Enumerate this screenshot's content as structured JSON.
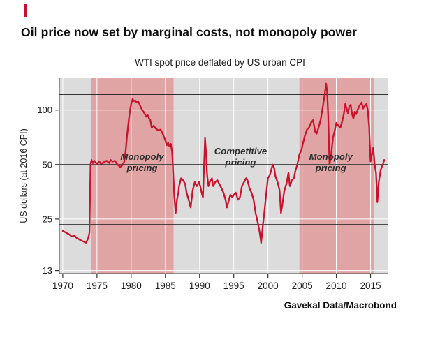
{
  "brand": {
    "color": "#c8102e"
  },
  "header": {
    "title": "Oil price now set by marginal costs, not monopoly power",
    "subtitle": "WTI spot price deflated by US urban CPI"
  },
  "footer": {
    "source": "Gavekal Data/Macrobond"
  },
  "chart_data": {
    "type": "line",
    "title": "Oil price now set by marginal costs, not monopoly power",
    "subtitle": "WTI spot price deflated by US urban CPI",
    "xlabel": "",
    "ylabel": "US dollars (at 2016 CPI)",
    "y_scale": "log",
    "xlim": [
      1969.5,
      2017.5
    ],
    "ylim": [
      12.5,
      150
    ],
    "x_ticks": [
      1970,
      1975,
      1980,
      1985,
      1990,
      1995,
      2000,
      2005,
      2010,
      2015
    ],
    "y_ticks": [
      13,
      25,
      50,
      100
    ],
    "grid": true,
    "legend": "none",
    "plot_bg": "#dcdcdc",
    "grid_color": "#ffffff",
    "band_color": "#e0a4a4",
    "line_color": "#c9132d",
    "reference_line_color": "#1a1a1a",
    "reference_lines": [
      122,
      50,
      23.3
    ],
    "shaded_regions": [
      {
        "label": "Monopoly pricing",
        "start": 1974.2,
        "end": 1986.2
      },
      {
        "label": "Monopoly pricing",
        "start": 2004.6,
        "end": 2015.5
      }
    ],
    "annotations": [
      {
        "line1": "Monopoly",
        "line2": "pricing",
        "x": 1981.6,
        "y": 53
      },
      {
        "line1": "Competitive",
        "line2": "pricing",
        "x": 1996.0,
        "y": 57
      },
      {
        "line1": "Monopoly",
        "line2": "pricing",
        "x": 2009.2,
        "y": 53
      }
    ],
    "series": [
      {
        "name": "WTI spot price (2016 US dollars)",
        "points": [
          [
            1970,
            21.5
          ],
          [
            1970.5,
            21
          ],
          [
            1971,
            20.5
          ],
          [
            1971.3,
            20
          ],
          [
            1971.7,
            20.3
          ],
          [
            1972,
            19.7
          ],
          [
            1972.5,
            19.2
          ],
          [
            1973,
            18.8
          ],
          [
            1973.4,
            18.5
          ],
          [
            1973.7,
            19.5
          ],
          [
            1973.9,
            21
          ],
          [
            1974.05,
            50
          ],
          [
            1974.2,
            53
          ],
          [
            1974.4,
            51
          ],
          [
            1974.6,
            52.5
          ],
          [
            1974.8,
            51.5
          ],
          [
            1975,
            50.5
          ],
          [
            1975.3,
            52
          ],
          [
            1975.6,
            50.5
          ],
          [
            1976,
            51.5
          ],
          [
            1976.4,
            52.5
          ],
          [
            1976.8,
            51
          ],
          [
            1977,
            53
          ],
          [
            1977.3,
            52
          ],
          [
            1977.6,
            52.5
          ],
          [
            1978,
            50
          ],
          [
            1978.4,
            48.5
          ],
          [
            1978.7,
            49.5
          ],
          [
            1979,
            52
          ],
          [
            1979.2,
            60
          ],
          [
            1979.4,
            72
          ],
          [
            1979.6,
            85
          ],
          [
            1979.8,
            98
          ],
          [
            1980,
            108
          ],
          [
            1980.2,
            115
          ],
          [
            1980.4,
            112
          ],
          [
            1980.6,
            113
          ],
          [
            1980.8,
            110
          ],
          [
            1981,
            112
          ],
          [
            1981.2,
            108
          ],
          [
            1981.4,
            104
          ],
          [
            1981.6,
            100
          ],
          [
            1981.8,
            98
          ],
          [
            1982,
            95
          ],
          [
            1982.2,
            92
          ],
          [
            1982.4,
            94
          ],
          [
            1982.6,
            90
          ],
          [
            1982.8,
            88
          ],
          [
            1983,
            80
          ],
          [
            1983.3,
            82
          ],
          [
            1983.6,
            79
          ],
          [
            1984,
            77
          ],
          [
            1984.3,
            78
          ],
          [
            1984.6,
            74
          ],
          [
            1985,
            68
          ],
          [
            1985.2,
            64
          ],
          [
            1985.4,
            66
          ],
          [
            1985.6,
            63
          ],
          [
            1985.8,
            65
          ],
          [
            1986,
            58
          ],
          [
            1986.15,
            45
          ],
          [
            1986.3,
            34
          ],
          [
            1986.5,
            27
          ],
          [
            1986.7,
            32
          ],
          [
            1986.9,
            35
          ],
          [
            1987,
            38
          ],
          [
            1987.3,
            42
          ],
          [
            1987.6,
            41
          ],
          [
            1987.9,
            39
          ],
          [
            1988.1,
            35
          ],
          [
            1988.4,
            32
          ],
          [
            1988.7,
            29
          ],
          [
            1989,
            36
          ],
          [
            1989.3,
            40
          ],
          [
            1989.6,
            38
          ],
          [
            1989.9,
            40
          ],
          [
            1990.1,
            38
          ],
          [
            1990.3,
            35
          ],
          [
            1990.5,
            33
          ],
          [
            1990.65,
            48
          ],
          [
            1990.8,
            70
          ],
          [
            1990.95,
            58
          ],
          [
            1991.1,
            44
          ],
          [
            1991.3,
            38
          ],
          [
            1991.5,
            40
          ],
          [
            1991.8,
            42
          ],
          [
            1992,
            38
          ],
          [
            1992.3,
            40
          ],
          [
            1992.6,
            41
          ],
          [
            1992.9,
            39
          ],
          [
            1993.2,
            37
          ],
          [
            1993.5,
            35
          ],
          [
            1993.8,
            32
          ],
          [
            1994,
            29
          ],
          [
            1994.2,
            31
          ],
          [
            1994.5,
            34
          ],
          [
            1994.8,
            33
          ],
          [
            1995,
            34
          ],
          [
            1995.3,
            35
          ],
          [
            1995.6,
            32
          ],
          [
            1995.9,
            33
          ],
          [
            1996.2,
            38
          ],
          [
            1996.5,
            40
          ],
          [
            1996.8,
            42
          ],
          [
            1997,
            41
          ],
          [
            1997.3,
            37
          ],
          [
            1997.6,
            35
          ],
          [
            1997.9,
            32
          ],
          [
            1998.2,
            27
          ],
          [
            1998.5,
            24
          ],
          [
            1998.8,
            21
          ],
          [
            1999,
            18.5
          ],
          [
            1999.2,
            22
          ],
          [
            1999.5,
            28
          ],
          [
            1999.8,
            36
          ],
          [
            2000,
            42
          ],
          [
            2000.3,
            44
          ],
          [
            2000.5,
            47
          ],
          [
            2000.7,
            50
          ],
          [
            2000.9,
            48
          ],
          [
            2001.1,
            43
          ],
          [
            2001.4,
            40
          ],
          [
            2001.7,
            36
          ],
          [
            2001.9,
            27
          ],
          [
            2002.1,
            30
          ],
          [
            2002.4,
            36
          ],
          [
            2002.7,
            39
          ],
          [
            2003,
            45
          ],
          [
            2003.2,
            38
          ],
          [
            2003.5,
            41
          ],
          [
            2003.8,
            42
          ],
          [
            2004,
            46
          ],
          [
            2004.3,
            50
          ],
          [
            2004.6,
            57
          ],
          [
            2004.9,
            60
          ],
          [
            2005.1,
            65
          ],
          [
            2005.4,
            72
          ],
          [
            2005.7,
            78
          ],
          [
            2006,
            80
          ],
          [
            2006.3,
            85
          ],
          [
            2006.6,
            88
          ],
          [
            2006.9,
            76
          ],
          [
            2007.1,
            74
          ],
          [
            2007.4,
            80
          ],
          [
            2007.7,
            88
          ],
          [
            2008,
            103
          ],
          [
            2008.3,
            122
          ],
          [
            2008.5,
            140
          ],
          [
            2008.65,
            128
          ],
          [
            2008.8,
            95
          ],
          [
            2009,
            50
          ],
          [
            2009.2,
            55
          ],
          [
            2009.5,
            70
          ],
          [
            2009.8,
            78
          ],
          [
            2010,
            85
          ],
          [
            2010.3,
            82
          ],
          [
            2010.6,
            80
          ],
          [
            2010.9,
            88
          ],
          [
            2011.1,
            95
          ],
          [
            2011.3,
            108
          ],
          [
            2011.5,
            102
          ],
          [
            2011.7,
            96
          ],
          [
            2011.9,
            105
          ],
          [
            2012.1,
            107
          ],
          [
            2012.3,
            95
          ],
          [
            2012.5,
            90
          ],
          [
            2012.7,
            98
          ],
          [
            2012.9,
            95
          ],
          [
            2013.1,
            100
          ],
          [
            2013.4,
            106
          ],
          [
            2013.7,
            110
          ],
          [
            2013.9,
            102
          ],
          [
            2014.1,
            105
          ],
          [
            2014.4,
            108
          ],
          [
            2014.6,
            100
          ],
          [
            2014.8,
            80
          ],
          [
            2015,
            52
          ],
          [
            2015.2,
            57
          ],
          [
            2015.4,
            62
          ],
          [
            2015.6,
            50
          ],
          [
            2015.8,
            45
          ],
          [
            2016,
            31
          ],
          [
            2016.2,
            40
          ],
          [
            2016.5,
            47
          ],
          [
            2016.8,
            50
          ],
          [
            2017,
            53
          ]
        ]
      }
    ],
    "source": "Gavekal Data/Macrobond"
  }
}
